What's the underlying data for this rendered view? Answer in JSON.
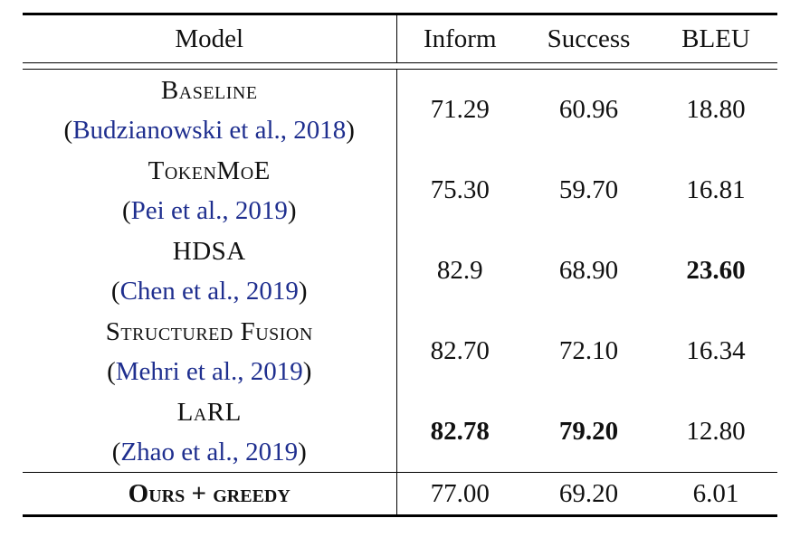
{
  "table": {
    "headers": [
      "Model",
      "Inform",
      "Success",
      "BLEU"
    ],
    "rows": [
      {
        "model": "Baseline",
        "citation": "Budzianowski et al., 2018",
        "inform": "71.29",
        "success": "60.96",
        "bleu": "18.80"
      },
      {
        "model": "TokenMoE",
        "citation": "Pei et al., 2019",
        "inform": "75.30",
        "success": "59.70",
        "bleu": "16.81"
      },
      {
        "model": "HDSA",
        "citation": "Chen et al., 2019",
        "inform": "82.9",
        "success": "68.90",
        "bleu": "23.60"
      },
      {
        "model": "Structured Fusion",
        "citation": "Mehri et al., 2019",
        "inform": "82.70",
        "success": "72.10",
        "bleu": "16.34"
      },
      {
        "model": "LaRL",
        "citation": "Zhao et al., 2019",
        "inform": "82.78",
        "success": "79.20",
        "bleu": "12.80"
      }
    ],
    "ours": {
      "model": "Ours + greedy",
      "inform": "77.00",
      "success": "69.20",
      "bleu": "6.01"
    },
    "colors": {
      "citation": "#1f2f8f",
      "rule": "#000000"
    }
  }
}
